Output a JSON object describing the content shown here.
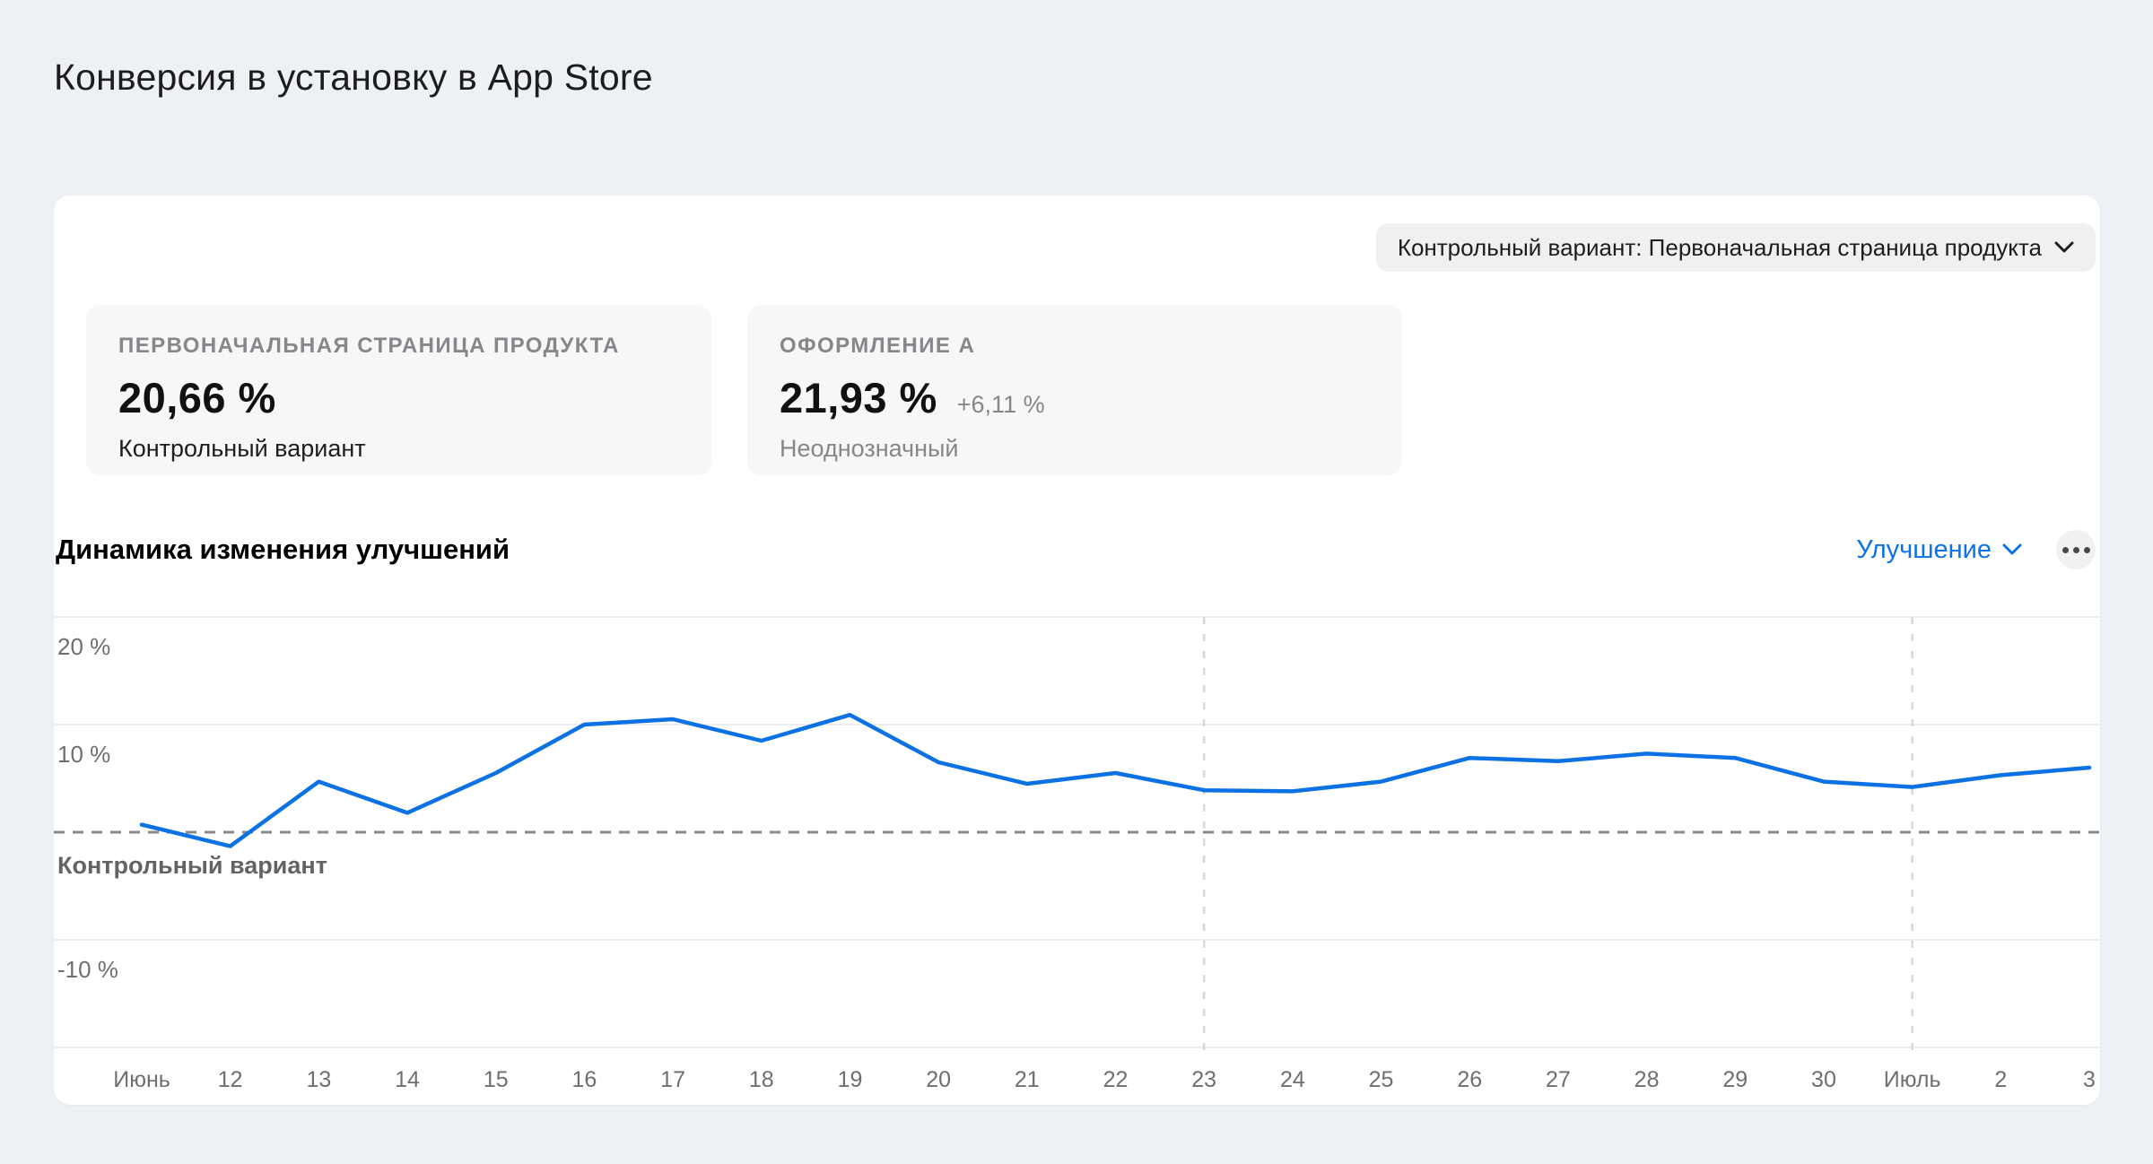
{
  "page": {
    "title": "Конверсия в установку в App Store",
    "background_color": "#edf0f4",
    "accent_blue": "#0c72e3"
  },
  "card": {
    "variant_selector": {
      "label": "Контрольный вариант: Первоначальная страница продукта"
    },
    "metrics": [
      {
        "label": "ПЕРВОНАЧАЛЬНАЯ СТРАНИЦА ПРОДУКТА",
        "value": "20,66 %",
        "delta": "",
        "note": "Контрольный вариант"
      },
      {
        "label": "ОФОРМЛЕНИЕ А",
        "value": "21,93 %",
        "delta": "+6,11 %",
        "note": "Неоднозначный"
      }
    ],
    "chart_header": {
      "title": "Динамика изменения улучшений",
      "metric_selector_label": "Улучшение",
      "more_icon": "ellipsis"
    }
  },
  "chart_data": {
    "type": "line",
    "title": "Динамика изменения улучшений",
    "x": [
      "Июнь",
      "12",
      "13",
      "14",
      "15",
      "16",
      "17",
      "18",
      "19",
      "20",
      "21",
      "22",
      "23",
      "24",
      "25",
      "26",
      "27",
      "28",
      "29",
      "30",
      "Июль",
      "2",
      "3"
    ],
    "values": [
      0.7,
      -1.3,
      4.7,
      1.8,
      5.5,
      10.0,
      10.5,
      8.5,
      10.9,
      6.5,
      4.5,
      5.5,
      3.9,
      3.8,
      4.7,
      6.9,
      6.6,
      7.3,
      6.9,
      4.7,
      4.2,
      5.3,
      6.0
    ],
    "ylabel": "Улучшение, %",
    "ylim": [
      -20,
      20
    ],
    "grid_values": [
      20,
      10,
      -10,
      -20
    ],
    "yticks": [
      {
        "value": 20,
        "label": "20 %"
      },
      {
        "value": 10,
        "label": "10 %"
      },
      {
        "value": 0,
        "label": "Контрольный вариант",
        "dashed": true
      },
      {
        "value": -10,
        "label": "-10 %"
      }
    ],
    "zero_line_meaning": "Контрольный вариант",
    "vline_x_labels": [
      "23",
      "Июль"
    ],
    "line_color": "#0c72e3",
    "legend": "none",
    "grid": true
  }
}
